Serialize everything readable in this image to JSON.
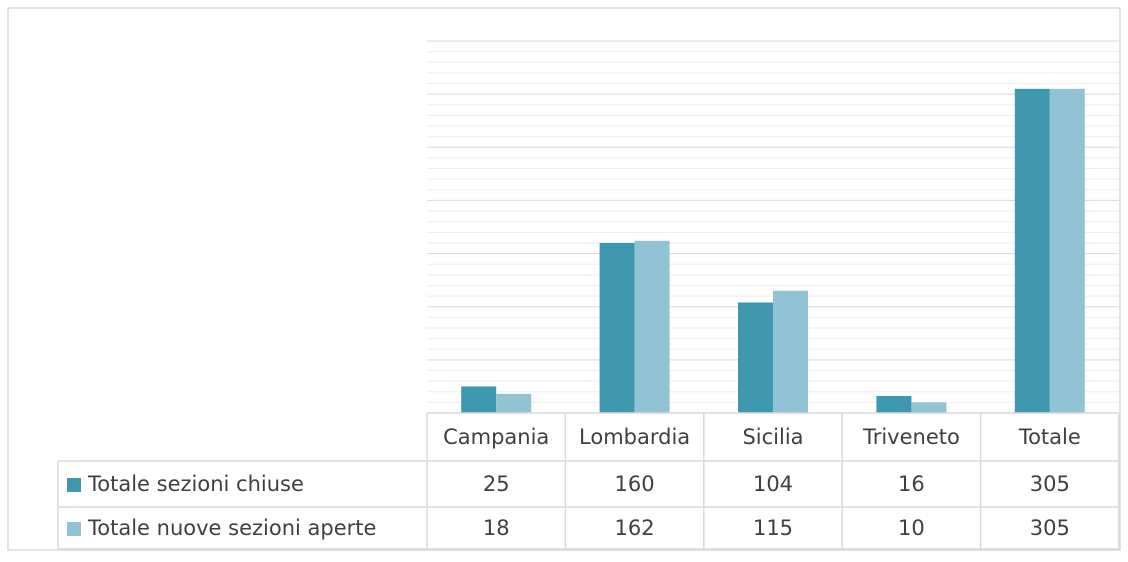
{
  "chart_data": {
    "type": "bar",
    "categories": [
      "Campania",
      "Lombardia",
      "Sicilia",
      "Triveneto",
      "Totale"
    ],
    "series": [
      {
        "name": "Totale sezioni chiuse",
        "color": "#4098ae",
        "values": [
          25,
          160,
          104,
          16,
          305
        ]
      },
      {
        "name": "Totale nuove sezioni aperte",
        "color": "#92c3d5",
        "values": [
          18,
          162,
          115,
          10,
          305
        ]
      }
    ],
    "ylim": [
      0,
      350
    ],
    "yticks": [
      0,
      50,
      100,
      150,
      200,
      250,
      300,
      350
    ],
    "grid": true,
    "data_table": true
  }
}
